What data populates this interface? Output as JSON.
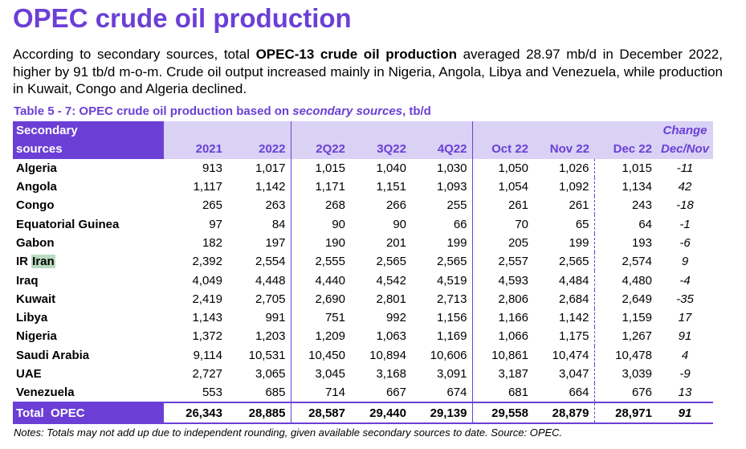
{
  "title": "OPEC crude oil production",
  "intro": {
    "part1": "According to secondary sources, total ",
    "bold": "OPEC-13 crude oil production",
    "part2": " averaged 28.97 mb/d in December 2022, higher by 91 tb/d m-o-m. Crude oil output increased mainly in Nigeria, Angola, Libya and Venezuela, while production in Kuwait, Congo and Algeria declined."
  },
  "caption": {
    "prefix": "Table 5 - 7: OPEC crude oil production based on ",
    "italic": "secondary sources",
    "suffix": ", tb/d"
  },
  "table": {
    "header_source_line1": "Secondary",
    "header_source_line2": "sources",
    "change_line1": "Change",
    "change_line2": "Dec/Nov",
    "columns": [
      "2021",
      "2022",
      "2Q22",
      "3Q22",
      "4Q22",
      "Oct 22",
      "Nov 22",
      "Dec 22"
    ],
    "rows": [
      {
        "name": "Algeria",
        "values": [
          "913",
          "1,017",
          "1,015",
          "1,040",
          "1,030",
          "1,050",
          "1,026",
          "1,015"
        ],
        "change": "-11"
      },
      {
        "name": "Angola",
        "values": [
          "1,117",
          "1,142",
          "1,171",
          "1,151",
          "1,093",
          "1,054",
          "1,092",
          "1,134"
        ],
        "change": "42"
      },
      {
        "name": "Congo",
        "values": [
          "265",
          "263",
          "268",
          "266",
          "255",
          "261",
          "261",
          "243"
        ],
        "change": "-18"
      },
      {
        "name": "Equatorial Guinea",
        "values": [
          "97",
          "84",
          "90",
          "90",
          "66",
          "70",
          "65",
          "64"
        ],
        "change": "-1"
      },
      {
        "name": "Gabon",
        "values": [
          "182",
          "197",
          "190",
          "201",
          "199",
          "205",
          "199",
          "193"
        ],
        "change": "-6"
      },
      {
        "name_prefix": "IR ",
        "name_highlight": "Iran",
        "values": [
          "2,392",
          "2,554",
          "2,555",
          "2,565",
          "2,565",
          "2,557",
          "2,565",
          "2,574"
        ],
        "change": "9"
      },
      {
        "name": "Iraq",
        "values": [
          "4,049",
          "4,448",
          "4,440",
          "4,542",
          "4,519",
          "4,593",
          "4,484",
          "4,480"
        ],
        "change": "-4"
      },
      {
        "name": "Kuwait",
        "values": [
          "2,419",
          "2,705",
          "2,690",
          "2,801",
          "2,713",
          "2,806",
          "2,684",
          "2,649"
        ],
        "change": "-35"
      },
      {
        "name": "Libya",
        "values": [
          "1,143",
          "991",
          "751",
          "992",
          "1,156",
          "1,166",
          "1,142",
          "1,159"
        ],
        "change": "17"
      },
      {
        "name": "Nigeria",
        "values": [
          "1,372",
          "1,203",
          "1,209",
          "1,063",
          "1,169",
          "1,066",
          "1,175",
          "1,267"
        ],
        "change": "91"
      },
      {
        "name": "Saudi Arabia",
        "values": [
          "9,114",
          "10,531",
          "10,450",
          "10,894",
          "10,606",
          "10,861",
          "10,474",
          "10,478"
        ],
        "change": "4"
      },
      {
        "name": "UAE",
        "values": [
          "2,727",
          "3,065",
          "3,045",
          "3,168",
          "3,091",
          "3,187",
          "3,047",
          "3,039"
        ],
        "change": "-9"
      },
      {
        "name": "Venezuela",
        "values": [
          "553",
          "685",
          "714",
          "667",
          "674",
          "681",
          "664",
          "676"
        ],
        "change": "13"
      }
    ],
    "total": {
      "name": "Total  OPEC",
      "values": [
        "26,343",
        "28,885",
        "28,587",
        "29,440",
        "29,139",
        "29,558",
        "28,879",
        "28,971"
      ],
      "change": "91"
    }
  },
  "notes": "Notes: Totals may not add up due to independent rounding, given available secondary sources to date. Source: OPEC.",
  "colors": {
    "accent": "#6b3fd6",
    "header_bg": "#d9d2f5",
    "highlight": "#b9dcc0"
  }
}
